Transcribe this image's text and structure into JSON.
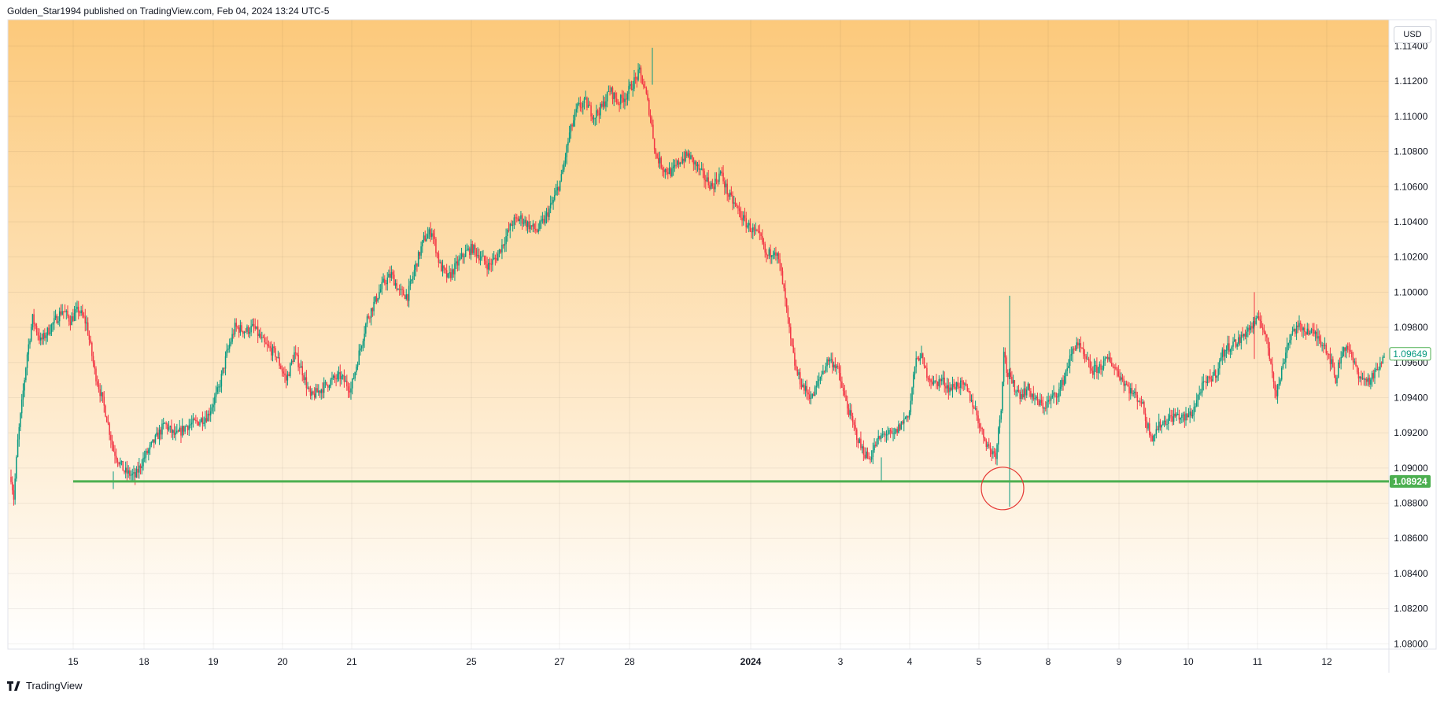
{
  "header": {
    "text": "Golden_Star1994 published on TradingView.com, Feb 04, 2024 13:24 UTC-5"
  },
  "currency": {
    "label": "USD"
  },
  "footer": {
    "brand": "TradingView"
  },
  "colors": {
    "up": "#089981",
    "down": "#f23645",
    "support_line": "#4caf50",
    "circle": "#e53935",
    "last_price_border": "#4caf50",
    "bg_top": "#fcc97b",
    "bg_bottom": "#ffffff"
  },
  "chart_data": {
    "type": "candlestick",
    "y_axis": {
      "ticks": [
        "1.11400",
        "1.11200",
        "1.11000",
        "1.10800",
        "1.10600",
        "1.10400",
        "1.10200",
        "1.10000",
        "1.09800",
        "1.09600",
        "1.09400",
        "1.09200",
        "1.09000",
        "1.08800",
        "1.08600",
        "1.08400",
        "1.08200",
        "1.08000"
      ],
      "range": [
        1.0797,
        1.1155
      ]
    },
    "x_axis": {
      "ticks": [
        "15",
        "18",
        "19",
        "20",
        "21",
        "25",
        "27",
        "28",
        "2024",
        "3",
        "4",
        "5",
        "8",
        "9",
        "10",
        "11",
        "12"
      ],
      "bold": [
        "2024"
      ]
    },
    "last_price": {
      "value": "1.09649"
    },
    "support_level": {
      "value": "1.08924"
    },
    "candles": {
      "anchors": [
        [
          0,
          1.0895
        ],
        [
          2,
          1.0883
        ],
        [
          5,
          1.0915
        ],
        [
          12,
          1.0965
        ],
        [
          16,
          1.0985
        ],
        [
          22,
          1.0972
        ],
        [
          32,
          1.0983
        ],
        [
          38,
          1.099
        ],
        [
          44,
          1.0984
        ],
        [
          50,
          1.099
        ],
        [
          56,
          1.0982
        ],
        [
          62,
          1.0955
        ],
        [
          70,
          1.0932
        ],
        [
          76,
          1.091
        ],
        [
          84,
          1.0898
        ],
        [
          92,
          1.0895
        ],
        [
          98,
          1.0905
        ],
        [
          106,
          1.0915
        ],
        [
          114,
          1.0925
        ],
        [
          122,
          1.0918
        ],
        [
          130,
          1.0924
        ],
        [
          138,
          1.0926
        ],
        [
          146,
          1.093
        ],
        [
          154,
          1.0945
        ],
        [
          160,
          1.0965
        ],
        [
          166,
          1.098
        ],
        [
          174,
          1.0978
        ],
        [
          180,
          1.098
        ],
        [
          188,
          1.097
        ],
        [
          196,
          1.0965
        ],
        [
          204,
          1.095
        ],
        [
          210,
          1.0965
        ],
        [
          216,
          1.0955
        ],
        [
          222,
          1.094
        ],
        [
          230,
          1.0945
        ],
        [
          238,
          1.095
        ],
        [
          244,
          1.0952
        ],
        [
          252,
          1.0945
        ],
        [
          258,
          1.0965
        ],
        [
          264,
          1.0985
        ],
        [
          270,
          1.0995
        ],
        [
          276,
          1.1005
        ],
        [
          282,
          1.101
        ],
        [
          288,
          1.1
        ],
        [
          294,
          1.0998
        ],
        [
          300,
          1.1015
        ],
        [
          306,
          1.103
        ],
        [
          312,
          1.1035
        ],
        [
          318,
          1.1015
        ],
        [
          324,
          1.1008
        ],
        [
          330,
          1.1015
        ],
        [
          336,
          1.1022
        ],
        [
          342,
          1.1025
        ],
        [
          348,
          1.102
        ],
        [
          354,
          1.1015
        ],
        [
          360,
          1.102
        ],
        [
          366,
          1.103
        ],
        [
          372,
          1.104
        ],
        [
          378,
          1.1042
        ],
        [
          384,
          1.1038
        ],
        [
          390,
          1.1035
        ],
        [
          396,
          1.1042
        ],
        [
          402,
          1.1052
        ],
        [
          408,
          1.1065
        ],
        [
          414,
          1.109
        ],
        [
          420,
          1.1105
        ],
        [
          426,
          1.1108
        ],
        [
          432,
          1.11
        ],
        [
          438,
          1.1105
        ],
        [
          444,
          1.1115
        ],
        [
          450,
          1.1108
        ],
        [
          456,
          1.1112
        ],
        [
          462,
          1.112
        ],
        [
          466,
          1.1125
        ],
        [
          470,
          1.1115
        ],
        [
          474,
          1.11
        ],
        [
          478,
          1.1078
        ],
        [
          484,
          1.107
        ],
        [
          490,
          1.1068
        ],
        [
          496,
          1.1075
        ],
        [
          502,
          1.1078
        ],
        [
          508,
          1.1072
        ],
        [
          514,
          1.1065
        ],
        [
          520,
          1.106
        ],
        [
          526,
          1.1068
        ],
        [
          532,
          1.1055
        ],
        [
          538,
          1.1048
        ],
        [
          544,
          1.104
        ],
        [
          550,
          1.1035
        ],
        [
          556,
          1.103
        ],
        [
          560,
          1.102
        ],
        [
          566,
          1.1025
        ],
        [
          570,
          1.1015
        ],
        [
          574,
          1.0995
        ],
        [
          578,
          1.0972
        ],
        [
          582,
          1.0955
        ],
        [
          588,
          1.0945
        ],
        [
          594,
          1.094
        ],
        [
          600,
          1.0952
        ],
        [
          606,
          1.0962
        ],
        [
          612,
          1.0958
        ],
        [
          618,
          1.094
        ],
        [
          624,
          1.0925
        ],
        [
          630,
          1.0912
        ],
        [
          636,
          1.0905
        ],
        [
          642,
          1.0915
        ],
        [
          648,
          1.092
        ],
        [
          654,
          1.0918
        ],
        [
          660,
          1.0925
        ],
        [
          666,
          1.0932
        ],
        [
          670,
          1.0958
        ],
        [
          674,
          1.0965
        ],
        [
          678,
          1.0955
        ],
        [
          684,
          1.0948
        ],
        [
          690,
          1.095
        ],
        [
          696,
          1.0945
        ],
        [
          702,
          1.0948
        ],
        [
          708,
          1.0945
        ],
        [
          714,
          1.0935
        ],
        [
          720,
          1.092
        ],
        [
          726,
          1.091
        ],
        [
          730,
          1.0908
        ],
        [
          734,
          1.0935
        ],
        [
          736,
          1.0968
        ],
        [
          738,
          1.0955
        ],
        [
          742,
          1.0948
        ],
        [
          748,
          1.0942
        ],
        [
          754,
          1.0945
        ],
        [
          760,
          1.0938
        ],
        [
          766,
          1.0935
        ],
        [
          772,
          1.094
        ],
        [
          778,
          1.0945
        ],
        [
          784,
          1.096
        ],
        [
          790,
          1.0972
        ],
        [
          796,
          1.0962
        ],
        [
          802,
          1.0955
        ],
        [
          808,
          1.0958
        ],
        [
          814,
          1.0962
        ],
        [
          820,
          1.0955
        ],
        [
          826,
          1.0948
        ],
        [
          832,
          1.0942
        ],
        [
          838,
          1.0938
        ],
        [
          842,
          1.0925
        ],
        [
          846,
          1.0918
        ],
        [
          852,
          1.0925
        ],
        [
          858,
          1.0928
        ],
        [
          864,
          1.093
        ],
        [
          870,
          1.0928
        ],
        [
          876,
          1.0932
        ],
        [
          882,
          1.0945
        ],
        [
          888,
          1.095
        ],
        [
          894,
          1.0955
        ],
        [
          898,
          1.0965
        ],
        [
          904,
          1.097
        ],
        [
          910,
          1.0972
        ],
        [
          916,
          1.0978
        ],
        [
          922,
          1.0982
        ],
        [
          926,
          1.0985
        ],
        [
          930,
          1.0975
        ],
        [
          934,
          1.096
        ],
        [
          938,
          1.0942
        ],
        [
          942,
          1.0955
        ],
        [
          946,
          1.097
        ],
        [
          950,
          1.0978
        ],
        [
          956,
          1.098
        ],
        [
          962,
          1.0978
        ],
        [
          968,
          1.0975
        ],
        [
          974,
          1.097
        ],
        [
          978,
          1.0962
        ],
        [
          982,
          1.095
        ],
        [
          986,
          1.0965
        ],
        [
          990,
          1.097
        ],
        [
          994,
          1.0962
        ],
        [
          998,
          1.0955
        ],
        [
          1002,
          1.095
        ],
        [
          1008,
          1.095
        ],
        [
          1014,
          1.0957
        ],
        [
          1018,
          1.0962
        ]
      ]
    }
  }
}
